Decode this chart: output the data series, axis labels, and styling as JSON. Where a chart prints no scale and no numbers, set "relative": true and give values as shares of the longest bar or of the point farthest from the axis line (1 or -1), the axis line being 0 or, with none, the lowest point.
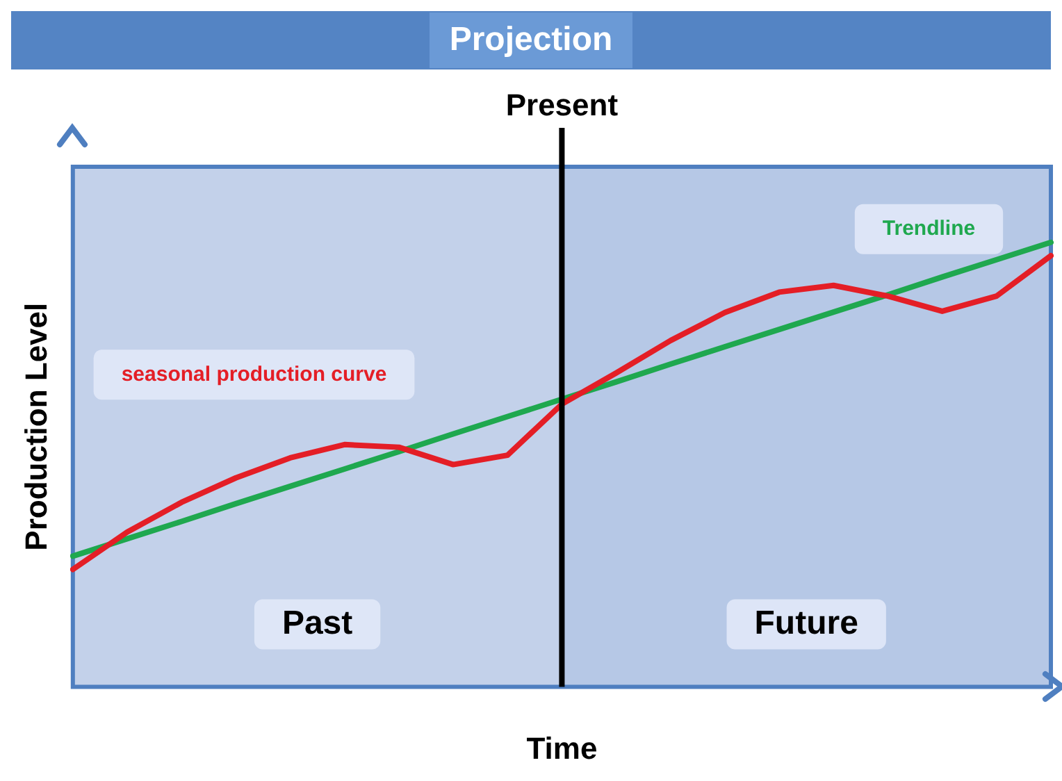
{
  "chart_data": {
    "type": "line",
    "title": "Projection",
    "xlabel": "Time",
    "ylabel": "Production Level",
    "relative": true,
    "categories": [
      null,
      null,
      null,
      null,
      null,
      null,
      null,
      null,
      null,
      null,
      null,
      null,
      null,
      null,
      null,
      null,
      null,
      null,
      null
    ],
    "grid": false,
    "legend": false,
    "marker": "none",
    "line_style": "solid",
    "series": [
      {
        "name": "seasonal production curve",
        "color": "#e41e26",
        "values": [
          0.264,
          0.348,
          0.415,
          0.47,
          0.515,
          0.545,
          0.539,
          0.5,
          0.521,
          0.636,
          0.706,
          0.779,
          0.842,
          0.888,
          0.903,
          0.879,
          0.845,
          0.879,
          0.97
        ]
      },
      {
        "name": "Trendline",
        "color": "#1fa84f",
        "values": [
          0.294,
          0.333,
          0.372,
          0.412,
          0.451,
          0.49,
          0.529,
          0.569,
          0.608,
          0.647,
          0.686,
          0.726,
          0.765,
          0.804,
          0.843,
          0.882,
          0.922,
          0.961,
          1.0
        ]
      }
    ],
    "annotations": [
      "Present",
      "Past",
      "Future"
    ]
  }
}
